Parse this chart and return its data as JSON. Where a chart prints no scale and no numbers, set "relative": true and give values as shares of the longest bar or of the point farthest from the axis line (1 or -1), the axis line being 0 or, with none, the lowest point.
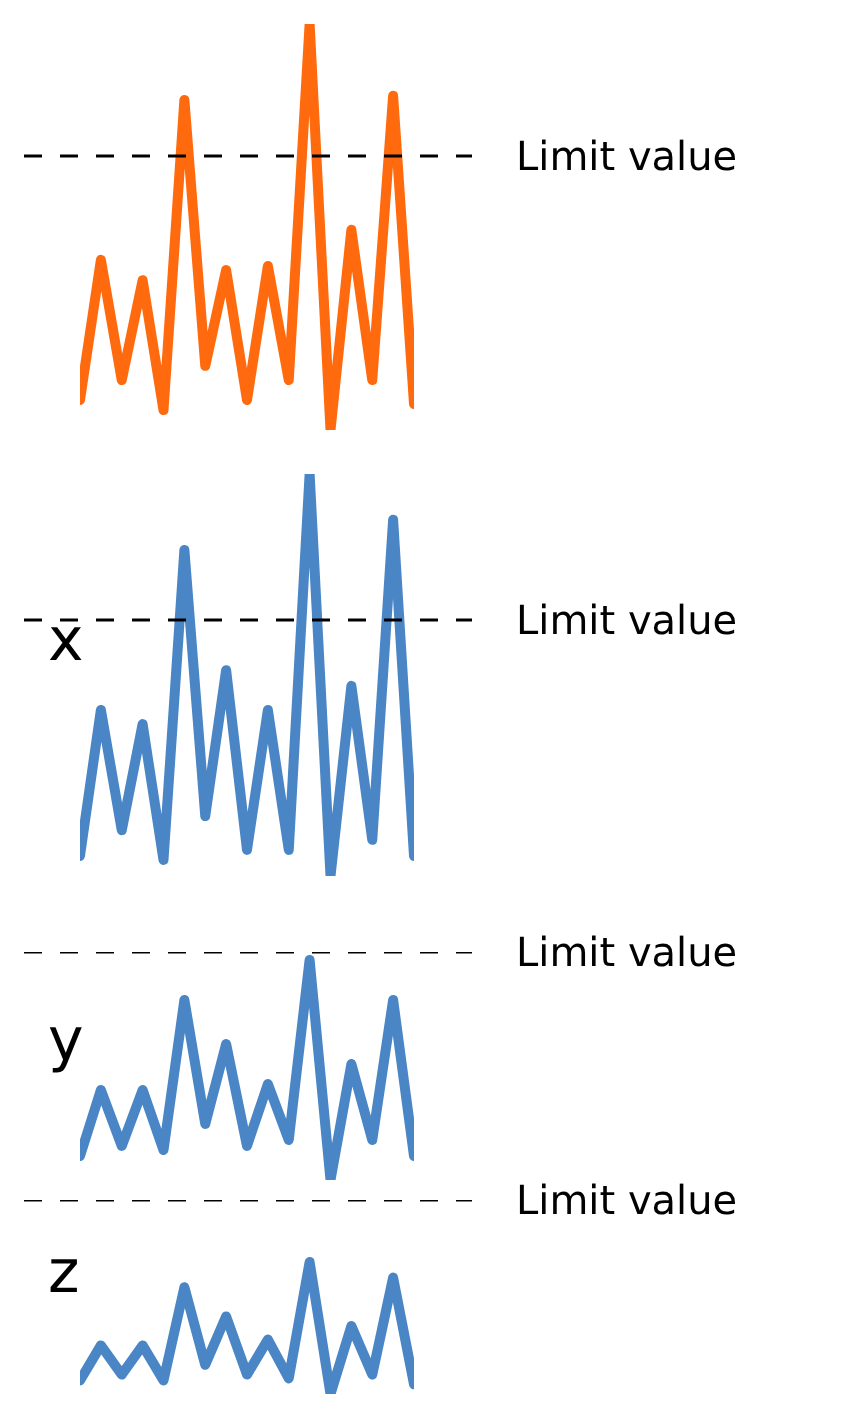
{
  "chart_data": [
    {
      "type": "line",
      "relative": true,
      "categories": [
        null,
        null,
        null,
        null,
        null,
        null,
        null,
        null,
        null,
        null,
        null,
        null,
        null,
        null,
        null,
        null,
        null
      ],
      "series": [
        {
          "color": "#ff6a0e",
          "values": [
            0.074,
            0.419,
            0.123,
            0.369,
            0.049,
            0.813,
            0.158,
            0.394,
            0.074,
            0.404,
            0.123,
            1,
            0,
            0.493,
            0.123,
            0.823,
            0.064
          ]
        }
      ],
      "ref_lines": [
        {
          "axis": "y",
          "value": 0.675,
          "label": "Limit value",
          "color": "#000000",
          "line_style": "dashed"
        }
      ],
      "legend": false,
      "marker": "none",
      "line_style": "solid"
    },
    {
      "type": "line",
      "relative": true,
      "ylabel": "x",
      "categories": [
        null,
        null,
        null,
        null,
        null,
        null,
        null,
        null,
        null,
        null,
        null,
        null,
        null,
        null,
        null,
        null,
        null
      ],
      "series": [
        {
          "color": "#4a86c5",
          "values": [
            0.05,
            0.413,
            0.114,
            0.378,
            0.04,
            0.811,
            0.149,
            0.512,
            0.065,
            0.413,
            0.065,
            1,
            0,
            0.473,
            0.09,
            0.886,
            0.05
          ]
        }
      ],
      "ref_lines": [
        {
          "axis": "y",
          "value": 0.637,
          "label": "Limit value",
          "color": "#000000",
          "line_style": "dashed"
        }
      ],
      "legend": false,
      "marker": "none",
      "line_style": "solid"
    },
    {
      "type": "line",
      "relative": true,
      "ylabel": "y",
      "categories": [
        null,
        null,
        null,
        null,
        null,
        null,
        null,
        null,
        null,
        null,
        null,
        null,
        null,
        null,
        null,
        null,
        null
      ],
      "series": [
        {
          "color": "#4a86c5",
          "values": [
            0.109,
            0.409,
            0.155,
            0.409,
            0.136,
            0.818,
            0.255,
            0.618,
            0.155,
            0.436,
            0.182,
            1,
            0,
            0.527,
            0.182,
            0.818,
            0.109
          ]
        }
      ],
      "ref_lines": [
        {
          "axis": "y",
          "value": 1.036,
          "label": "Limit value",
          "color": "#000000",
          "line_style": "dashed"
        }
      ],
      "legend": false,
      "marker": "none",
      "line_style": "solid"
    },
    {
      "type": "line",
      "relative": true,
      "ylabel": "z",
      "categories": [
        null,
        null,
        null,
        null,
        null,
        null,
        null,
        null,
        null,
        null,
        null,
        null,
        null,
        null,
        null,
        null,
        null
      ],
      "series": [
        {
          "color": "#4a86c5",
          "values": [
            0.103,
            0.368,
            0.147,
            0.368,
            0.103,
            0.809,
            0.221,
            0.588,
            0.147,
            0.412,
            0.118,
            1,
            0,
            0.515,
            0.147,
            0.882,
            0.074
          ]
        }
      ],
      "ref_lines": [
        {
          "axis": "y",
          "value": 1.47,
          "label": "Limit value",
          "color": "#000000",
          "line_style": "dashed"
        }
      ],
      "legend": false,
      "marker": "none",
      "line_style": "solid"
    }
  ]
}
